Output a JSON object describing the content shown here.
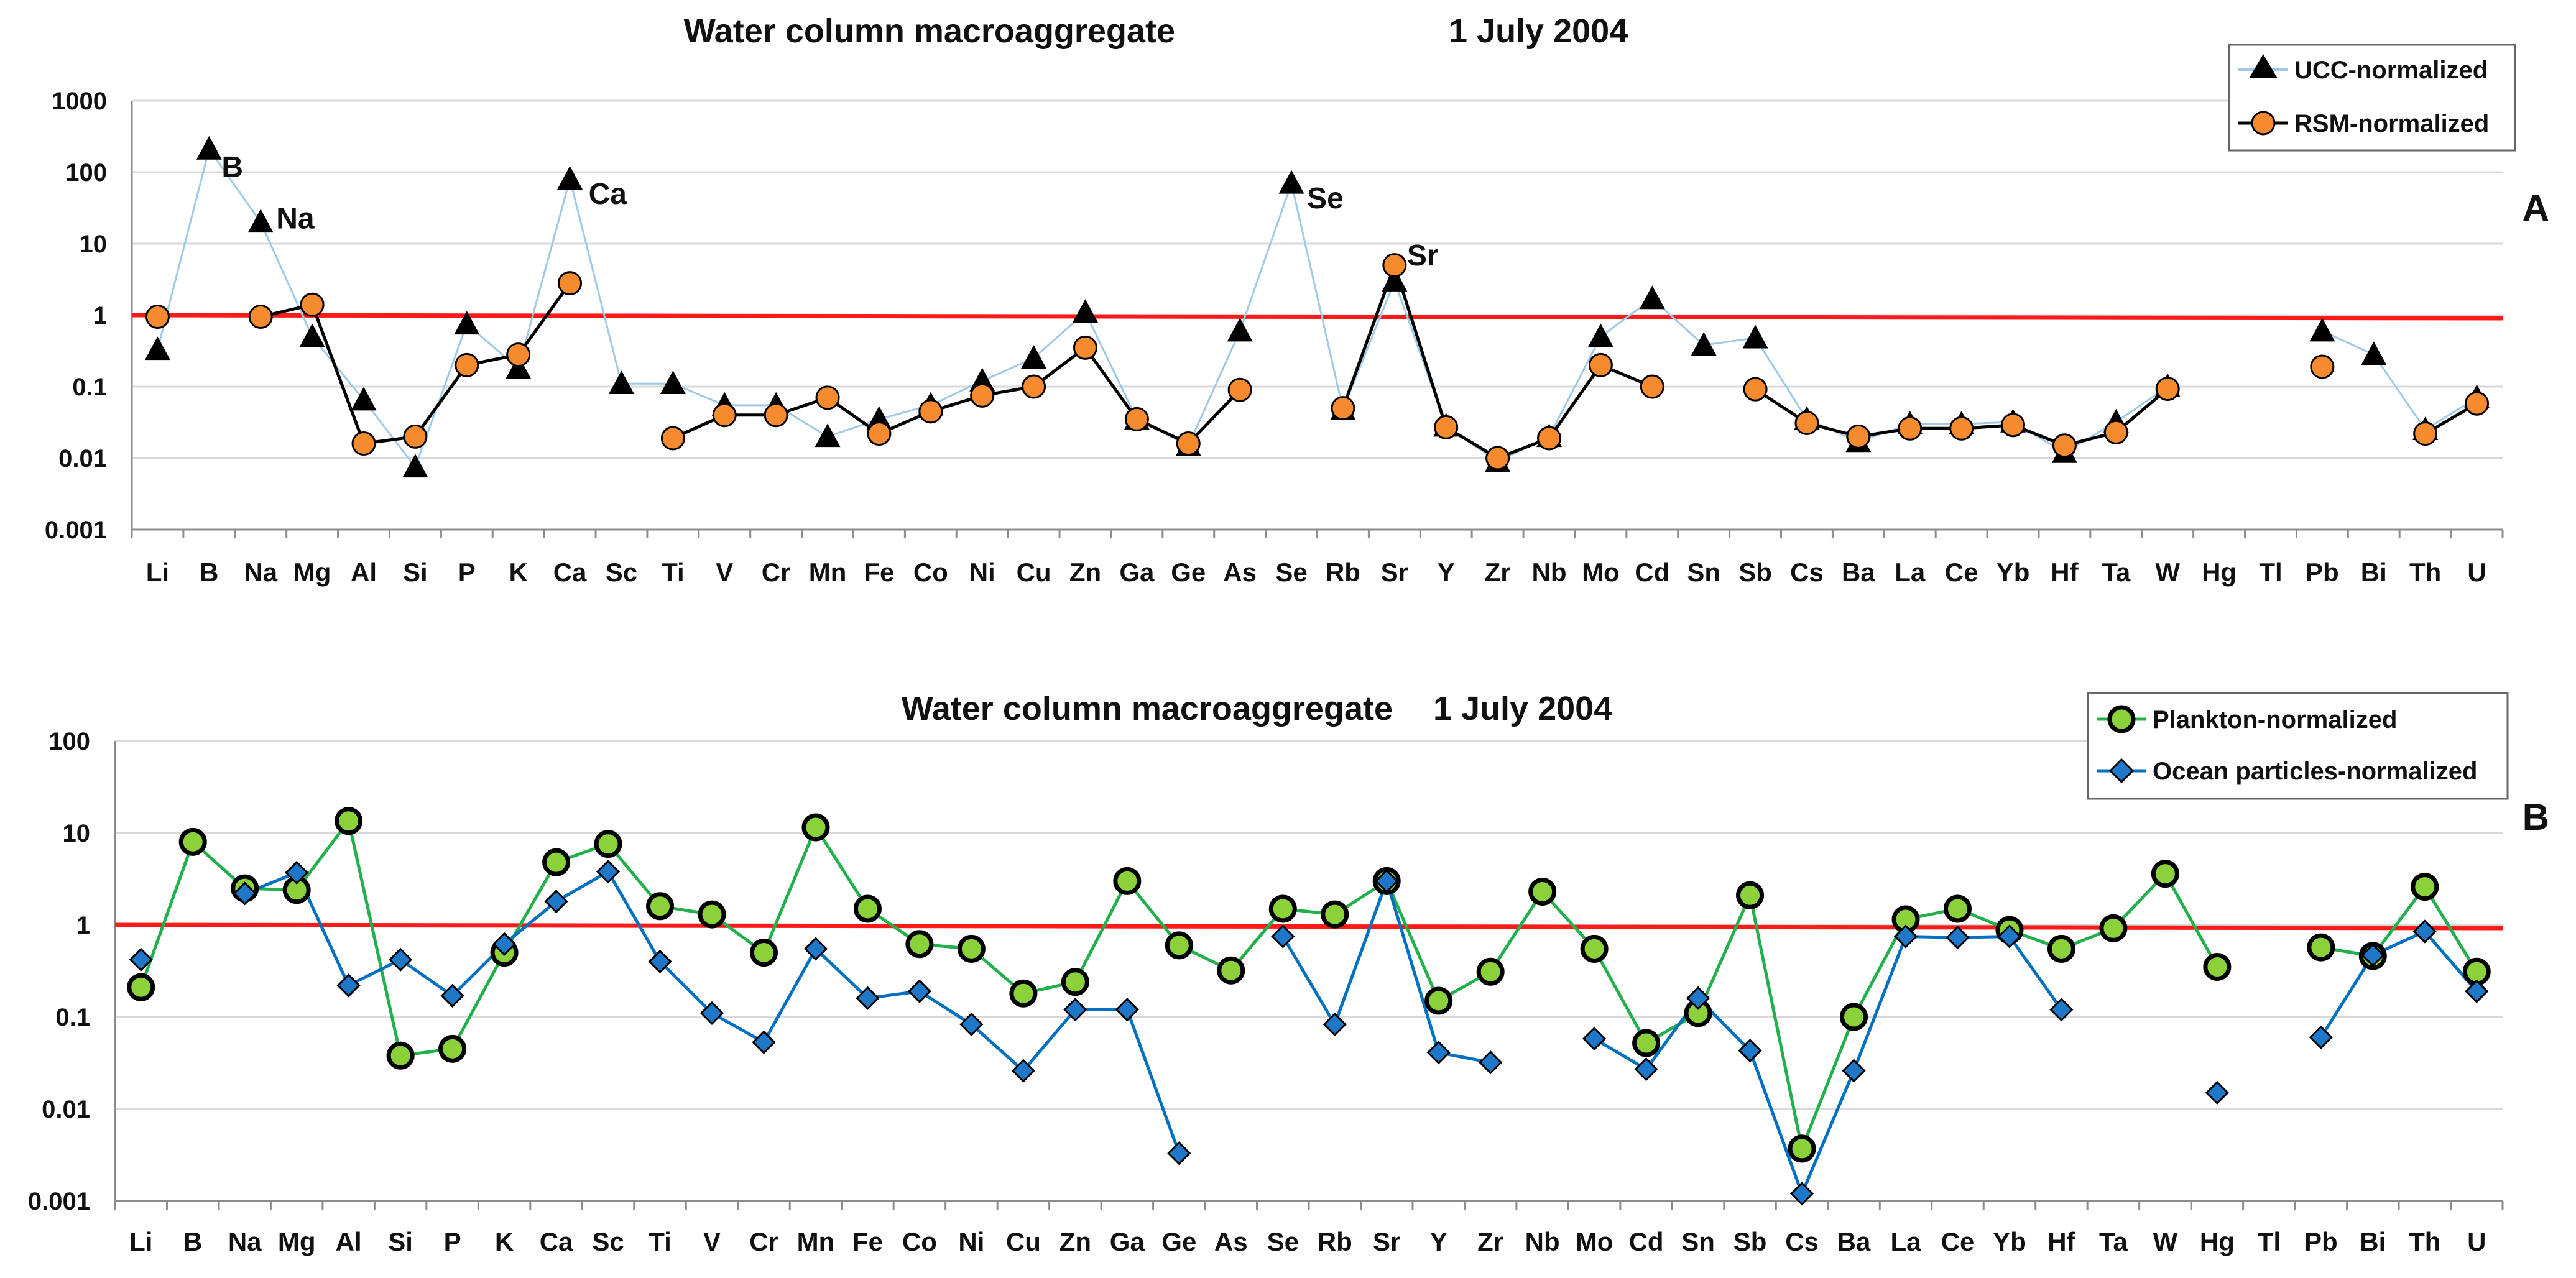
{
  "chart_data": [
    {
      "panel": "A",
      "type": "line",
      "title": "Water column macroaggregate",
      "date": "1 July 2004",
      "yscale": "log",
      "ylim": [
        0.001,
        1000
      ],
      "ytick_labels": [
        "1000",
        "100",
        "10",
        "1",
        "0.1",
        "0.01",
        "0.001"
      ],
      "reference_line": 1,
      "categories": [
        "Li",
        "B",
        "Na",
        "Mg",
        "Al",
        "Si",
        "P",
        "K",
        "Ca",
        "Sc",
        "Ti",
        "V",
        "Cr",
        "Mn",
        "Fe",
        "Co",
        "Ni",
        "Cu",
        "Zn",
        "Ga",
        "Ge",
        "As",
        "Se",
        "Rb",
        "Sr",
        "Y",
        "Zr",
        "Nb",
        "Mo",
        "Cd",
        "Sn",
        "Sb",
        "Cs",
        "Ba",
        "La",
        "Ce",
        "Yb",
        "Hf",
        "Ta",
        "W",
        "Hg",
        "Tl",
        "Pb",
        "Bi",
        "Th",
        "U"
      ],
      "series": [
        {
          "name": "UCC-normalized",
          "marker": "triangle",
          "line_color": "#9ec9e8",
          "values": [
            0.33,
            210,
            20,
            0.5,
            0.065,
            0.0075,
            0.75,
            0.18,
            80,
            0.11,
            0.11,
            0.055,
            0.055,
            0.02,
            0.035,
            0.055,
            0.12,
            0.25,
            1.1,
            0.035,
            0.015,
            0.6,
            70,
            0.048,
            3,
            0.028,
            0.009,
            0.02,
            0.5,
            1.7,
            0.38,
            0.48,
            0.035,
            0.017,
            0.03,
            0.03,
            0.032,
            0.012,
            0.032,
            0.1,
            null,
            null,
            0.6,
            0.28,
            0.025,
            0.07
          ]
        },
        {
          "name": "RSM-normalized",
          "marker": "circle",
          "line_color": "#000000",
          "values": [
            0.95,
            null,
            0.95,
            1.4,
            0.016,
            0.02,
            0.2,
            0.28,
            2.8,
            null,
            0.019,
            0.04,
            0.04,
            0.07,
            0.022,
            0.045,
            0.075,
            0.1,
            0.35,
            0.035,
            0.016,
            0.09,
            null,
            0.05,
            5,
            0.027,
            0.01,
            0.019,
            0.2,
            0.1,
            null,
            0.092,
            0.031,
            0.02,
            0.026,
            0.026,
            0.029,
            0.015,
            0.023,
            0.093,
            null,
            null,
            0.19,
            null,
            0.022,
            0.058
          ]
        }
      ],
      "annotations": [
        {
          "text": "B",
          "category": "B"
        },
        {
          "text": "Na",
          "category": "Na"
        },
        {
          "text": "Ca",
          "category": "Ca"
        },
        {
          "text": "Se",
          "category": "Se"
        },
        {
          "text": "Sr",
          "category": "Sr"
        }
      ]
    },
    {
      "panel": "B",
      "type": "line",
      "title": "Water column macroaggregate",
      "date": "1 July 2004",
      "yscale": "log",
      "ylim": [
        0.001,
        100
      ],
      "ytick_labels": [
        "100",
        "10",
        "1",
        "0.1",
        "0.01",
        "0.001"
      ],
      "reference_line": 1,
      "categories": [
        "Li",
        "B",
        "Na",
        "Mg",
        "Al",
        "Si",
        "P",
        "K",
        "Ca",
        "Sc",
        "Ti",
        "V",
        "Cr",
        "Mn",
        "Fe",
        "Co",
        "Ni",
        "Cu",
        "Zn",
        "Ga",
        "Ge",
        "As",
        "Se",
        "Rb",
        "Sr",
        "Y",
        "Zr",
        "Nb",
        "Mo",
        "Cd",
        "Sn",
        "Sb",
        "Cs",
        "Ba",
        "La",
        "Ce",
        "Yb",
        "Hf",
        "Ta",
        "W",
        "Hg",
        "Tl",
        "Pb",
        "Bi",
        "Th",
        "U"
      ],
      "series": [
        {
          "name": "Plankton-normalized",
          "marker": "circle",
          "line_color": "#22b04c",
          "values": [
            0.21,
            8,
            2.5,
            2.4,
            13.5,
            0.038,
            0.045,
            0.5,
            4.8,
            7.6,
            1.6,
            1.3,
            0.5,
            11.5,
            1.5,
            0.62,
            0.55,
            0.18,
            0.24,
            3,
            0.6,
            0.32,
            1.5,
            1.3,
            3,
            0.15,
            0.31,
            2.3,
            0.55,
            0.052,
            0.11,
            2.1,
            0.0037,
            0.1,
            1.15,
            1.5,
            0.88,
            0.55,
            0.92,
            3.6,
            0.35,
            null,
            0.57,
            0.46,
            2.6,
            0.31
          ]
        },
        {
          "name": "Ocean particles-normalized",
          "marker": "diamond",
          "line_color": "#0070c0",
          "values": [
            0.42,
            null,
            2.2,
            3.7,
            0.22,
            0.42,
            0.17,
            0.62,
            1.8,
            3.8,
            0.4,
            0.11,
            0.053,
            0.55,
            0.16,
            0.19,
            0.083,
            0.026,
            0.12,
            0.12,
            0.0033,
            null,
            0.75,
            0.083,
            3,
            0.041,
            0.032,
            null,
            0.058,
            0.027,
            0.16,
            0.043,
            0.0012,
            0.026,
            0.75,
            0.73,
            0.75,
            0.12,
            null,
            null,
            0.015,
            null,
            0.06,
            0.47,
            0.85,
            0.19
          ]
        }
      ]
    }
  ]
}
